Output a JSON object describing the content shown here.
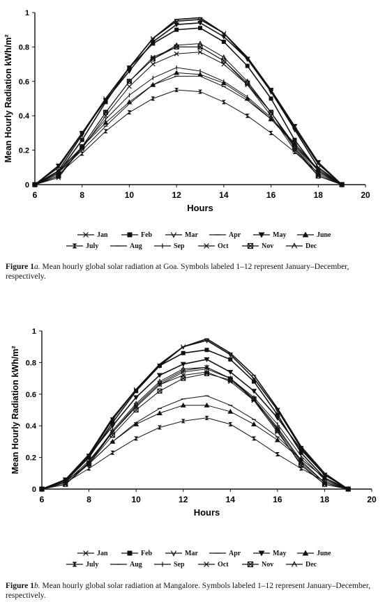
{
  "chart_data": [
    {
      "type": "line",
      "id": "goa",
      "xlabel": "Hours",
      "ylabel": "Mean Hourly Radiation kWh/m²",
      "xlim": [
        6,
        20
      ],
      "ylim": [
        0,
        1
      ],
      "xticks": [
        "6",
        "8",
        "10",
        "12",
        "14",
        "16",
        "18",
        "20"
      ],
      "yticks": [
        "0",
        "0.2",
        "0.4",
        "0.6",
        "0.8",
        "1"
      ],
      "x": [
        6,
        7,
        8,
        9,
        10,
        11,
        12,
        13,
        14,
        15,
        16,
        17,
        18,
        19
      ],
      "series": [
        {
          "name": "Jan",
          "marker": "x",
          "values": [
            0,
            0.04,
            0.22,
            0.42,
            0.6,
            0.74,
            0.8,
            0.8,
            0.72,
            0.58,
            0.4,
            0.2,
            0.05,
            0
          ]
        },
        {
          "name": "Feb",
          "marker": "square",
          "values": [
            0,
            0.07,
            0.26,
            0.48,
            0.68,
            0.82,
            0.9,
            0.91,
            0.83,
            0.69,
            0.5,
            0.26,
            0.08,
            0
          ]
        },
        {
          "name": "Mar",
          "marker": "vee",
          "values": [
            0,
            0.08,
            0.29,
            0.5,
            0.68,
            0.85,
            0.95,
            0.96,
            0.88,
            0.73,
            0.54,
            0.32,
            0.1,
            0
          ]
        },
        {
          "name": "Apr",
          "marker": "dash",
          "values": [
            0,
            0.1,
            0.3,
            0.5,
            0.68,
            0.85,
            0.96,
            0.97,
            0.88,
            0.74,
            0.55,
            0.33,
            0.12,
            0
          ]
        },
        {
          "name": "May",
          "marker": "tri-down",
          "values": [
            0,
            0.11,
            0.3,
            0.49,
            0.66,
            0.83,
            0.93,
            0.94,
            0.86,
            0.73,
            0.55,
            0.34,
            0.13,
            0
          ]
        },
        {
          "name": "June",
          "marker": "tri-up",
          "values": [
            0,
            0.08,
            0.22,
            0.36,
            0.48,
            0.58,
            0.65,
            0.64,
            0.59,
            0.5,
            0.38,
            0.24,
            0.09,
            0
          ]
        },
        {
          "name": "July",
          "marker": "bowtie",
          "values": [
            0,
            0.06,
            0.18,
            0.31,
            0.42,
            0.5,
            0.55,
            0.54,
            0.48,
            0.4,
            0.3,
            0.19,
            0.07,
            0
          ]
        },
        {
          "name": "Aug",
          "marker": "dash",
          "values": [
            0,
            0.07,
            0.2,
            0.34,
            0.47,
            0.58,
            0.63,
            0.63,
            0.57,
            0.49,
            0.38,
            0.23,
            0.08,
            0
          ]
        },
        {
          "name": "Sep",
          "marker": "tick",
          "values": [
            0,
            0.07,
            0.22,
            0.38,
            0.52,
            0.62,
            0.68,
            0.66,
            0.6,
            0.51,
            0.39,
            0.24,
            0.08,
            0
          ]
        },
        {
          "name": "Oct",
          "marker": "x",
          "values": [
            0,
            0.05,
            0.21,
            0.4,
            0.57,
            0.7,
            0.76,
            0.77,
            0.7,
            0.58,
            0.42,
            0.23,
            0.06,
            0
          ]
        },
        {
          "name": "Nov",
          "marker": "boxx",
          "values": [
            0,
            0.05,
            0.22,
            0.42,
            0.6,
            0.73,
            0.8,
            0.8,
            0.72,
            0.59,
            0.42,
            0.22,
            0.05,
            0
          ]
        },
        {
          "name": "Dec",
          "marker": "caret",
          "values": [
            0,
            0.05,
            0.22,
            0.42,
            0.6,
            0.73,
            0.81,
            0.82,
            0.74,
            0.6,
            0.42,
            0.21,
            0.05,
            0
          ]
        }
      ]
    },
    {
      "type": "line",
      "id": "mangalore",
      "xlabel": "Hours",
      "ylabel": "Mean Hourly Radiation kWh/m²",
      "xlim": [
        6,
        20
      ],
      "ylim": [
        0,
        1
      ],
      "xticks": [
        "6",
        "8",
        "10",
        "12",
        "14",
        "16",
        "18",
        "20"
      ],
      "yticks": [
        "0",
        "0.2",
        "0.4",
        "0.6",
        "0.8",
        "1"
      ],
      "x": [
        6,
        7,
        8,
        9,
        10,
        11,
        12,
        13,
        14,
        15,
        16,
        17,
        18,
        19
      ],
      "series": [
        {
          "name": "Jan",
          "marker": "x",
          "values": [
            0,
            0.03,
            0.16,
            0.36,
            0.52,
            0.66,
            0.72,
            0.74,
            0.68,
            0.56,
            0.38,
            0.17,
            0.04,
            0
          ]
        },
        {
          "name": "Feb",
          "marker": "square",
          "values": [
            0,
            0.05,
            0.2,
            0.42,
            0.62,
            0.78,
            0.86,
            0.88,
            0.82,
            0.68,
            0.47,
            0.23,
            0.07,
            0
          ]
        },
        {
          "name": "Mar",
          "marker": "vee",
          "values": [
            0,
            0.05,
            0.21,
            0.44,
            0.63,
            0.78,
            0.9,
            0.94,
            0.85,
            0.7,
            0.5,
            0.26,
            0.09,
            0
          ]
        },
        {
          "name": "Apr",
          "marker": "dash",
          "values": [
            0,
            0.06,
            0.22,
            0.45,
            0.63,
            0.79,
            0.9,
            0.95,
            0.86,
            0.72,
            0.51,
            0.27,
            0.1,
            0
          ]
        },
        {
          "name": "May",
          "marker": "tri-down",
          "values": [
            0,
            0.06,
            0.21,
            0.4,
            0.58,
            0.72,
            0.79,
            0.82,
            0.74,
            0.62,
            0.45,
            0.25,
            0.09,
            0
          ]
        },
        {
          "name": "June",
          "marker": "tri-up",
          "values": [
            0,
            0.05,
            0.16,
            0.3,
            0.41,
            0.48,
            0.53,
            0.53,
            0.49,
            0.41,
            0.31,
            0.19,
            0.07,
            0
          ]
        },
        {
          "name": "July",
          "marker": "bowtie",
          "values": [
            0,
            0.04,
            0.13,
            0.23,
            0.32,
            0.39,
            0.43,
            0.45,
            0.41,
            0.32,
            0.22,
            0.13,
            0.05,
            0
          ]
        },
        {
          "name": "Aug",
          "marker": "dash",
          "values": [
            0,
            0.05,
            0.16,
            0.3,
            0.42,
            0.51,
            0.57,
            0.59,
            0.53,
            0.44,
            0.33,
            0.19,
            0.07,
            0
          ]
        },
        {
          "name": "Sep",
          "marker": "tick",
          "values": [
            0,
            0.04,
            0.18,
            0.36,
            0.52,
            0.66,
            0.74,
            0.76,
            0.7,
            0.58,
            0.41,
            0.21,
            0.06,
            0
          ]
        },
        {
          "name": "Oct",
          "marker": "x",
          "values": [
            0,
            0.03,
            0.17,
            0.36,
            0.53,
            0.67,
            0.75,
            0.77,
            0.7,
            0.57,
            0.39,
            0.18,
            0.04,
            0
          ]
        },
        {
          "name": "Nov",
          "marker": "boxx",
          "values": [
            0,
            0.03,
            0.16,
            0.34,
            0.5,
            0.62,
            0.7,
            0.73,
            0.69,
            0.57,
            0.37,
            0.15,
            0.03,
            0
          ]
        },
        {
          "name": "Dec",
          "marker": "caret",
          "values": [
            0,
            0.03,
            0.17,
            0.37,
            0.54,
            0.68,
            0.76,
            0.77,
            0.7,
            0.56,
            0.36,
            0.16,
            0.03,
            0
          ]
        }
      ]
    }
  ],
  "captions": {
    "a": {
      "label": "Figure 1",
      "label_suffix": "a.",
      "text": "Mean hourly global solar radiation at Goa. Symbols labeled 1–12 represent January–December, respectively."
    },
    "b": {
      "label": "Figure 1",
      "label_suffix": "b.",
      "text": "Mean hourly global solar radiation at Mangalore. Symbols labeled 1–12 represent January–December, respectively."
    }
  }
}
